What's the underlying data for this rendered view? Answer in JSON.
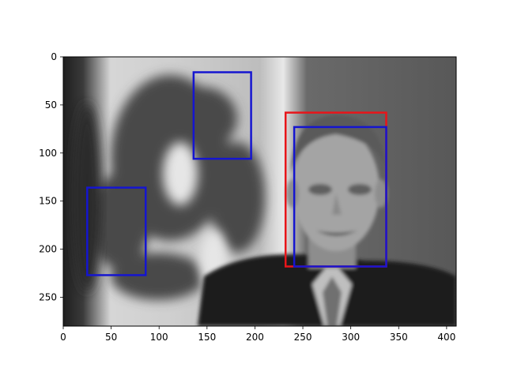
{
  "chart_data": {
    "type": "image-with-boxes",
    "title": "",
    "xlabel": "",
    "ylabel": "",
    "xlim": [
      0,
      410
    ],
    "ylim": [
      280,
      0
    ],
    "x_ticks": [
      0,
      50,
      100,
      150,
      200,
      250,
      300,
      350,
      400
    ],
    "y_ticks": [
      0,
      50,
      100,
      150,
      200,
      250
    ],
    "image": {
      "description": "grayscale photo of a smiling man in suit and tie in front of a blurred flag with emblem",
      "colormap": "gray"
    },
    "boxes": [
      {
        "color": "#e8151a",
        "x0": 232,
        "y0": 58,
        "x1": 337,
        "y1": 218
      },
      {
        "color": "#1515d0",
        "x0": 241,
        "y0": 73,
        "x1": 337,
        "y1": 218
      },
      {
        "color": "#1515d0",
        "x0": 136,
        "y0": 16,
        "x1": 196,
        "y1": 106
      },
      {
        "color": "#1515d0",
        "x0": 25,
        "y0": 136,
        "x1": 86,
        "y1": 227
      }
    ]
  }
}
